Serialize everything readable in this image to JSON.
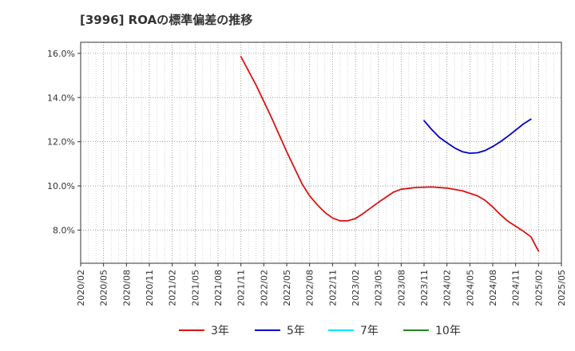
{
  "chart_data": {
    "type": "line",
    "title": "[3996]  ROAの標準偏差の推移",
    "xlabel": "",
    "ylabel": "",
    "ylim": [
      6.5,
      16.5
    ],
    "yticks": [
      8.0,
      10.0,
      12.0,
      14.0,
      16.0
    ],
    "ytick_labels": [
      "8.0%",
      "10.0%",
      "12.0%",
      "14.0%",
      "16.0%"
    ],
    "xlim": [
      "2020/02",
      "2025/05"
    ],
    "xtick_labels": [
      "2020/02",
      "2020/05",
      "2020/08",
      "2020/11",
      "2021/02",
      "2021/05",
      "2021/08",
      "2021/11",
      "2022/02",
      "2022/05",
      "2022/08",
      "2022/11",
      "2023/02",
      "2023/05",
      "2023/08",
      "2023/11",
      "2024/02",
      "2024/05",
      "2024/08",
      "2024/11",
      "2025/02",
      "2025/05"
    ],
    "grid": true,
    "legend_position": "bottom",
    "series": [
      {
        "name": "3年",
        "color": "#dd1111",
        "points": [
          [
            "2021/11",
            15.85
          ],
          [
            "2022/01",
            14.55
          ],
          [
            "2022/03",
            13.1
          ],
          [
            "2022/05",
            11.55
          ],
          [
            "2022/07",
            10.1
          ],
          [
            "2022/08",
            9.55
          ],
          [
            "2022/09",
            9.15
          ],
          [
            "2022/10",
            8.8
          ],
          [
            "2022/11",
            8.55
          ],
          [
            "2022/12",
            8.42
          ],
          [
            "2023/01",
            8.42
          ],
          [
            "2023/02",
            8.52
          ],
          [
            "2023/03",
            8.75
          ],
          [
            "2023/05",
            9.25
          ],
          [
            "2023/07",
            9.72
          ],
          [
            "2023/08",
            9.85
          ],
          [
            "2023/10",
            9.93
          ],
          [
            "2023/12",
            9.95
          ],
          [
            "2024/02",
            9.9
          ],
          [
            "2024/04",
            9.78
          ],
          [
            "2024/06",
            9.55
          ],
          [
            "2024/07",
            9.35
          ],
          [
            "2024/08",
            9.05
          ],
          [
            "2024/09",
            8.7
          ],
          [
            "2024/10",
            8.4
          ],
          [
            "2024/12",
            7.95
          ],
          [
            "2025/01",
            7.7
          ],
          [
            "2025/02",
            7.05
          ]
        ]
      },
      {
        "name": "5年",
        "color": "#0000cc",
        "points": [
          [
            "2023/11",
            12.95
          ],
          [
            "2023/12",
            12.55
          ],
          [
            "2024/01",
            12.2
          ],
          [
            "2024/02",
            11.95
          ],
          [
            "2024/03",
            11.72
          ],
          [
            "2024/04",
            11.55
          ],
          [
            "2024/05",
            11.48
          ],
          [
            "2024/06",
            11.5
          ],
          [
            "2024/07",
            11.6
          ],
          [
            "2024/08",
            11.78
          ],
          [
            "2024/09",
            12.0
          ],
          [
            "2024/10",
            12.25
          ],
          [
            "2024/11",
            12.52
          ],
          [
            "2024/12",
            12.8
          ],
          [
            "2025/01",
            13.02
          ]
        ]
      },
      {
        "name": "7年",
        "color": "#00e5ff",
        "points": []
      },
      {
        "name": "10年",
        "color": "#228822",
        "points": []
      }
    ]
  }
}
